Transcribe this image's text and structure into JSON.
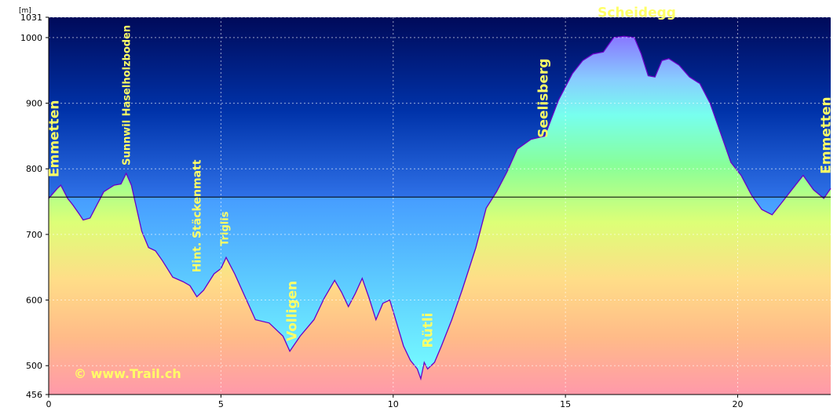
{
  "chart_data": {
    "type": "area",
    "y_unit": "[m]",
    "xlim": [
      0,
      22.7
    ],
    "ylim": [
      456,
      1031
    ],
    "x_ticks": [
      0,
      5,
      10,
      15,
      20
    ],
    "y_ticks": [
      456,
      500,
      600,
      700,
      800,
      900,
      1000,
      1031
    ],
    "reference_line": 757,
    "grid": true,
    "copyright": "© www.Trail.ch",
    "profile": {
      "x": [
        0,
        0.25,
        0.35,
        0.55,
        0.7,
        0.9,
        1.0,
        1.2,
        1.4,
        1.6,
        1.9,
        2.1,
        2.25,
        2.4,
        2.55,
        2.7,
        2.9,
        3.1,
        3.3,
        3.6,
        3.9,
        4.1,
        4.3,
        4.5,
        4.8,
        5.0,
        5.15,
        5.4,
        5.7,
        6.0,
        6.4,
        6.8,
        7.0,
        7.3,
        7.7,
        8.0,
        8.3,
        8.5,
        8.7,
        8.9,
        9.1,
        9.3,
        9.5,
        9.7,
        9.9,
        10.1,
        10.3,
        10.5,
        10.7,
        10.8,
        10.9,
        11.0,
        11.2,
        11.4,
        11.7,
        12.0,
        12.4,
        12.7,
        13.0,
        13.3,
        13.6,
        14.0,
        14.4,
        14.8,
        15.2,
        15.5,
        15.8,
        16.1,
        16.4,
        16.7,
        17.0,
        17.2,
        17.4,
        17.6,
        17.8,
        18.0,
        18.3,
        18.6,
        18.9,
        19.2,
        19.5,
        19.8,
        20.1,
        20.4,
        20.7,
        21.0,
        21.3,
        21.6,
        21.9,
        22.2,
        22.5,
        22.75
      ],
      "y": [
        755,
        770,
        775,
        755,
        745,
        730,
        722,
        725,
        745,
        765,
        775,
        777,
        793,
        775,
        740,
        705,
        680,
        675,
        660,
        635,
        628,
        622,
        605,
        615,
        640,
        648,
        665,
        640,
        605,
        570,
        565,
        545,
        522,
        545,
        570,
        603,
        630,
        612,
        590,
        610,
        633,
        603,
        570,
        595,
        600,
        565,
        530,
        508,
        495,
        480,
        505,
        495,
        505,
        530,
        570,
        615,
        680,
        740,
        765,
        795,
        830,
        845,
        850,
        905,
        945,
        965,
        975,
        978,
        1000,
        1002,
        1000,
        975,
        942,
        940,
        965,
        968,
        958,
        940,
        930,
        900,
        855,
        810,
        790,
        760,
        738,
        730,
        750,
        770,
        790,
        768,
        755,
        770
      ]
    },
    "annotations": [
      {
        "label": "Emmetten",
        "x": 0.15,
        "y": 780
      },
      {
        "label": "Sunnwil Haselholzboden",
        "x": 2.25,
        "y": 798
      },
      {
        "label": "Hint. Stäckenmatt",
        "x": 4.3,
        "y": 635
      },
      {
        "label": "Triglis",
        "x": 5.1,
        "y": 675
      },
      {
        "label": "Volligen",
        "x": 7.05,
        "y": 530
      },
      {
        "label": "Rütli",
        "x": 11.0,
        "y": 520
      },
      {
        "label": "Seelisberg",
        "x": 14.35,
        "y": 840
      },
      {
        "label": "Scheidegg",
        "x": 17.3,
        "y": 1015
      },
      {
        "label": "Emmetten",
        "x": 22.55,
        "y": 785
      }
    ]
  }
}
